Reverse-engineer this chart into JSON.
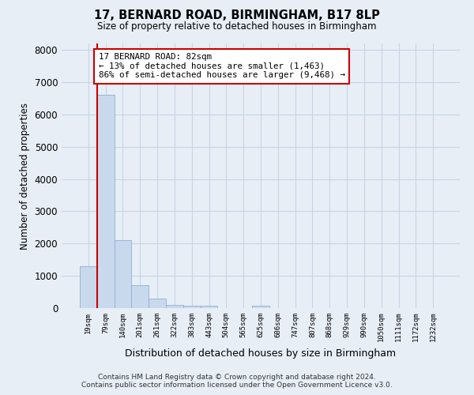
{
  "title1": "17, BERNARD ROAD, BIRMINGHAM, B17 8LP",
  "title2": "Size of property relative to detached houses in Birmingham",
  "xlabel": "Distribution of detached houses by size in Birmingham",
  "ylabel": "Number of detached properties",
  "categories": [
    "19sqm",
    "79sqm",
    "140sqm",
    "201sqm",
    "261sqm",
    "322sqm",
    "383sqm",
    "443sqm",
    "504sqm",
    "565sqm",
    "625sqm",
    "686sqm",
    "747sqm",
    "807sqm",
    "868sqm",
    "929sqm",
    "990sqm",
    "1050sqm",
    "1111sqm",
    "1172sqm",
    "1232sqm"
  ],
  "values": [
    1300,
    6600,
    2100,
    700,
    300,
    110,
    70,
    70,
    0,
    0,
    70,
    0,
    0,
    0,
    0,
    0,
    0,
    0,
    0,
    0,
    0
  ],
  "bar_color": "#c9d9ed",
  "bar_edge_color": "#8bafd4",
  "annotation_text": "17 BERNARD ROAD: 82sqm\n← 13% of detached houses are smaller (1,463)\n86% of semi-detached houses are larger (9,468) →",
  "annotation_box_facecolor": "#ffffff",
  "annotation_border_color": "#cc0000",
  "vline_color": "#cc0000",
  "ylim": [
    0,
    8200
  ],
  "yticks": [
    0,
    1000,
    2000,
    3000,
    4000,
    5000,
    6000,
    7000,
    8000
  ],
  "grid_color": "#c5d5e5",
  "background_color": "#e8eef6",
  "footnote1": "Contains HM Land Registry data © Crown copyright and database right 2024.",
  "footnote2": "Contains public sector information licensed under the Open Government Licence v3.0."
}
